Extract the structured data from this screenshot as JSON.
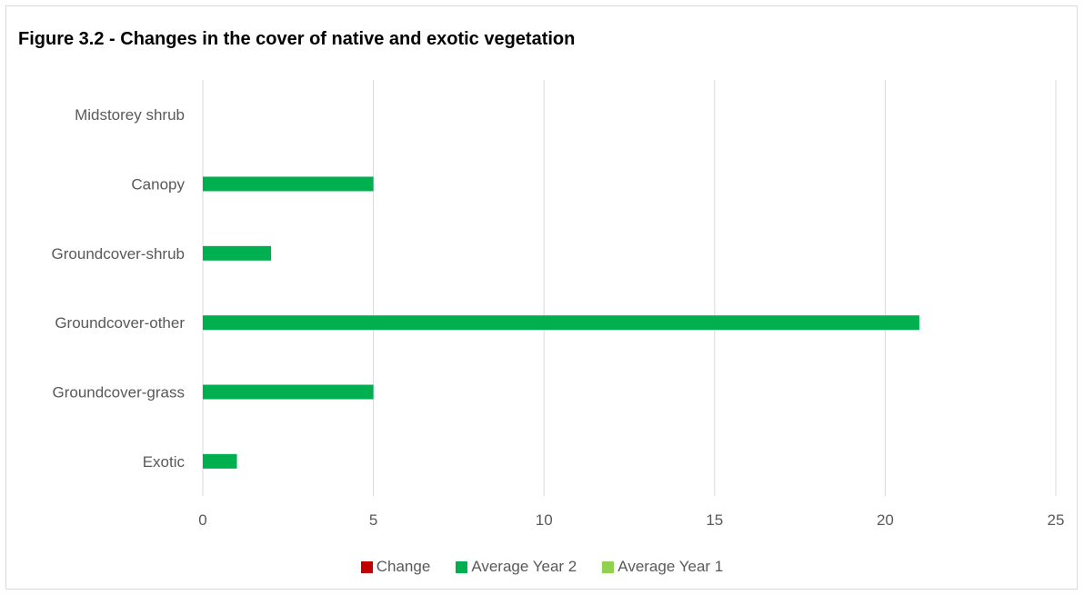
{
  "chart_data": {
    "type": "bar",
    "orientation": "horizontal",
    "title": "Figure 3.2 - Changes in the cover of native and exotic vegetation",
    "categories": [
      "Midstorey shrub",
      "Canopy",
      "Groundcover-shrub",
      "Groundcover-other",
      "Groundcover-grass",
      "Exotic"
    ],
    "series": [
      {
        "name": "Change",
        "color": "#c00000",
        "values": [
          null,
          null,
          null,
          null,
          null,
          null
        ]
      },
      {
        "name": "Average Year 2",
        "color": "#00b050",
        "values": [
          null,
          5,
          2,
          21,
          5,
          1
        ]
      },
      {
        "name": "Average Year 1",
        "color": "#92d050",
        "values": [
          null,
          null,
          null,
          null,
          null,
          null
        ]
      }
    ],
    "xlim": [
      0,
      25
    ],
    "xticks": [
      "0",
      "5",
      "10",
      "15",
      "20",
      "25"
    ],
    "xlabel": "",
    "ylabel": "",
    "grid": true,
    "legend_position": "bottom"
  }
}
